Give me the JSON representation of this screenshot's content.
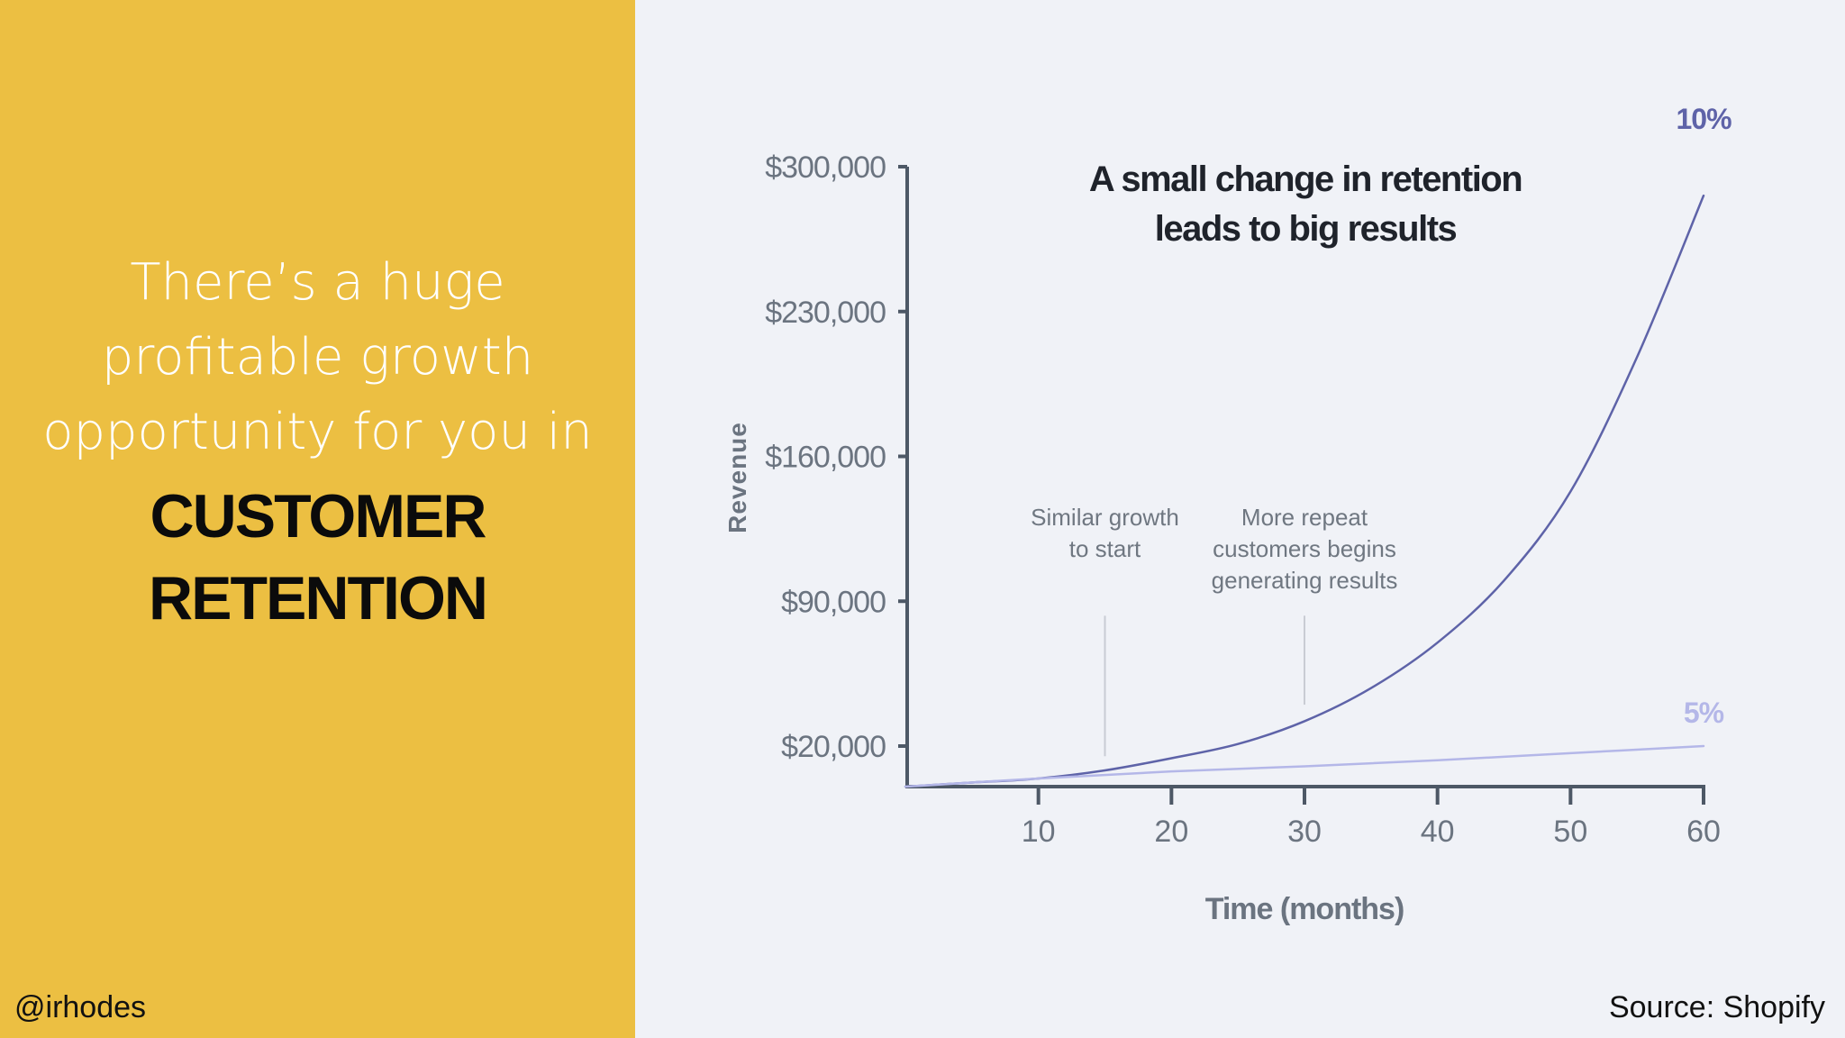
{
  "slide": {
    "headline_lines": [
      "There’s a huge",
      "profitable growth",
      "opportunity for you in"
    ],
    "emphasis_lines": [
      "CUSTOMER",
      "RETENTION"
    ],
    "handle": "@irhodes",
    "source": "Source: Shopify"
  },
  "colors": {
    "panel": "#ecbf42",
    "background": "#f0f2f7",
    "series_10": "#5e63a8",
    "series_5": "#b4b7e8",
    "axis": "#4d5866",
    "tick_text": "#6b7480"
  },
  "chart_data": {
    "type": "line",
    "title_lines": [
      "A small change in retention",
      "leads to big results"
    ],
    "xlabel": "Time (months)",
    "ylabel": "Revenue",
    "x_ticks": [
      10,
      20,
      30,
      40,
      50,
      60
    ],
    "y_tick_labels": [
      "$300,000",
      "$230,000",
      "$160,000",
      "$90,000",
      "$20,000"
    ],
    "y_ticks": [
      300000,
      230000,
      160000,
      90000,
      20000
    ],
    "xlim": [
      0,
      60
    ],
    "ylim": [
      0,
      300000
    ],
    "grid": false,
    "series": [
      {
        "name": "10%",
        "x": [
          0,
          5,
          10,
          15,
          20,
          25,
          30,
          35,
          40,
          45,
          50,
          55,
          60
        ],
        "y": [
          0,
          2000,
          4000,
          8000,
          14000,
          21000,
          32000,
          48000,
          70000,
          100000,
          143000,
          208000,
          286000
        ]
      },
      {
        "name": "5%",
        "x": [
          0,
          10,
          20,
          30,
          40,
          50,
          60
        ],
        "y": [
          0,
          4000,
          7500,
          10000,
          13000,
          16500,
          20000
        ]
      }
    ],
    "annotations": [
      {
        "lines": [
          "Similar growth",
          "to start"
        ],
        "x": 15,
        "y_top": 83000,
        "y_bottom": 15000
      },
      {
        "lines": [
          "More repeat",
          "customers begins",
          "generating results"
        ],
        "x": 30,
        "y_top": 83000,
        "y_bottom": 40000
      }
    ]
  }
}
